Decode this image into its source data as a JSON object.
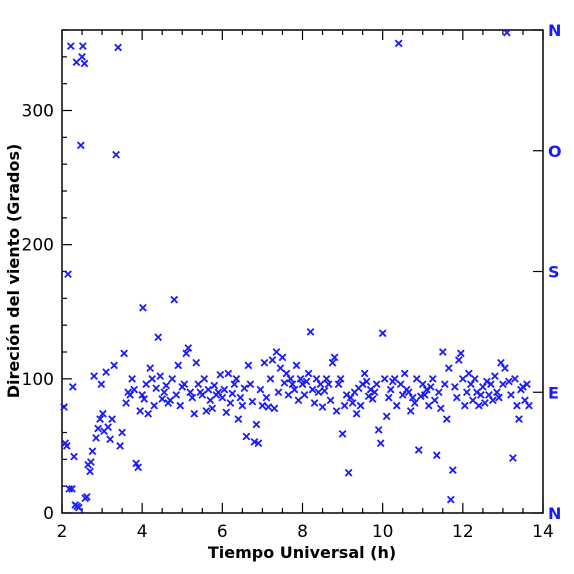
{
  "chart_data": {
    "type": "scatter",
    "xlabel": "Tiempo Universal (h)",
    "ylabel": "Direción del viento (Grados)",
    "xlim": [
      2,
      14
    ],
    "ylim": [
      0,
      360
    ],
    "xticks": [
      2,
      4,
      6,
      8,
      10,
      12,
      14
    ],
    "yticks": [
      0,
      100,
      200,
      300
    ],
    "compass_labels": [
      {
        "label": "N",
        "value": 0
      },
      {
        "label": "E",
        "value": 90
      },
      {
        "label": "S",
        "value": 180
      },
      {
        "label": "O",
        "value": 270
      },
      {
        "label": "N",
        "value": 360
      }
    ],
    "marker": "x",
    "color": "#1a1aff",
    "grid": false,
    "series": [
      {
        "points": [
          [
            2.05,
            79
          ],
          [
            2.08,
            52
          ],
          [
            2.12,
            50
          ],
          [
            2.15,
            178
          ],
          [
            2.18,
            18
          ],
          [
            2.22,
            348
          ],
          [
            2.25,
            18
          ],
          [
            2.27,
            94
          ],
          [
            2.3,
            42
          ],
          [
            2.33,
            6
          ],
          [
            2.36,
            336
          ],
          [
            2.38,
            5
          ],
          [
            2.42,
            4
          ],
          [
            2.47,
            274
          ],
          [
            2.5,
            340
          ],
          [
            2.52,
            348
          ],
          [
            2.56,
            335
          ],
          [
            2.58,
            11
          ],
          [
            2.62,
            12
          ],
          [
            2.65,
            36
          ],
          [
            2.7,
            31
          ],
          [
            2.72,
            38
          ],
          [
            2.76,
            46
          ],
          [
            2.8,
            102
          ],
          [
            2.85,
            56
          ],
          [
            2.9,
            63
          ],
          [
            2.95,
            70
          ],
          [
            2.98,
            96
          ],
          [
            3.02,
            74
          ],
          [
            3.05,
            61
          ],
          [
            3.1,
            105
          ],
          [
            3.15,
            64
          ],
          [
            3.2,
            55
          ],
          [
            3.25,
            70
          ],
          [
            3.3,
            110
          ],
          [
            3.35,
            267
          ],
          [
            3.4,
            347
          ],
          [
            3.45,
            50
          ],
          [
            3.5,
            60
          ],
          [
            3.55,
            119
          ],
          [
            3.6,
            82
          ],
          [
            3.65,
            90
          ],
          [
            3.7,
            88
          ],
          [
            3.75,
            100
          ],
          [
            3.8,
            92
          ],
          [
            3.85,
            37
          ],
          [
            3.9,
            34
          ],
          [
            3.95,
            76
          ],
          [
            4.0,
            88
          ],
          [
            4.02,
            153
          ],
          [
            4.05,
            85
          ],
          [
            4.1,
            96
          ],
          [
            4.15,
            74
          ],
          [
            4.2,
            108
          ],
          [
            4.25,
            100
          ],
          [
            4.3,
            80
          ],
          [
            4.35,
            93
          ],
          [
            4.4,
            131
          ],
          [
            4.45,
            102
          ],
          [
            4.5,
            85
          ],
          [
            4.55,
            90
          ],
          [
            4.6,
            95
          ],
          [
            4.65,
            82
          ],
          [
            4.7,
            84
          ],
          [
            4.75,
            100
          ],
          [
            4.8,
            159
          ],
          [
            4.85,
            88
          ],
          [
            4.9,
            110
          ],
          [
            4.95,
            80
          ],
          [
            5.0,
            94
          ],
          [
            5.05,
            96
          ],
          [
            5.1,
            119
          ],
          [
            5.15,
            123
          ],
          [
            5.2,
            90
          ],
          [
            5.25,
            86
          ],
          [
            5.3,
            74
          ],
          [
            5.35,
            112
          ],
          [
            5.4,
            96
          ],
          [
            5.45,
            90
          ],
          [
            5.5,
            88
          ],
          [
            5.55,
            100
          ],
          [
            5.6,
            76
          ],
          [
            5.65,
            92
          ],
          [
            5.7,
            84
          ],
          [
            5.75,
            78
          ],
          [
            5.8,
            95
          ],
          [
            5.85,
            88
          ],
          [
            5.9,
            90
          ],
          [
            5.95,
            103
          ],
          [
            6.0,
            86
          ],
          [
            6.05,
            92
          ],
          [
            6.1,
            75
          ],
          [
            6.15,
            104
          ],
          [
            6.2,
            82
          ],
          [
            6.25,
            89
          ],
          [
            6.3,
            96
          ],
          [
            6.35,
            100
          ],
          [
            6.4,
            70
          ],
          [
            6.45,
            86
          ],
          [
            6.5,
            80
          ],
          [
            6.55,
            93
          ],
          [
            6.6,
            57
          ],
          [
            6.65,
            110
          ],
          [
            6.7,
            96
          ],
          [
            6.75,
            83
          ],
          [
            6.8,
            53
          ],
          [
            6.85,
            66
          ],
          [
            6.9,
            52
          ],
          [
            6.95,
            92
          ],
          [
            7.0,
            80
          ],
          [
            7.05,
            112
          ],
          [
            7.1,
            86
          ],
          [
            7.15,
            79
          ],
          [
            7.2,
            100
          ],
          [
            7.25,
            114
          ],
          [
            7.3,
            78
          ],
          [
            7.35,
            120
          ],
          [
            7.4,
            90
          ],
          [
            7.45,
            108
          ],
          [
            7.5,
            116
          ],
          [
            7.55,
            97
          ],
          [
            7.6,
            104
          ],
          [
            7.65,
            88
          ],
          [
            7.7,
            100
          ],
          [
            7.75,
            96
          ],
          [
            7.8,
            92
          ],
          [
            7.85,
            110
          ],
          [
            7.9,
            84
          ],
          [
            7.95,
            100
          ],
          [
            8.0,
            96
          ],
          [
            8.05,
            88
          ],
          [
            8.1,
            98
          ],
          [
            8.15,
            104
          ],
          [
            8.2,
            135
          ],
          [
            8.25,
            92
          ],
          [
            8.3,
            82
          ],
          [
            8.35,
            100
          ],
          [
            8.4,
            90
          ],
          [
            8.45,
            96
          ],
          [
            8.5,
            79
          ],
          [
            8.55,
            91
          ],
          [
            8.6,
            100
          ],
          [
            8.65,
            96
          ],
          [
            8.7,
            84
          ],
          [
            8.75,
            112
          ],
          [
            8.8,
            116
          ],
          [
            8.85,
            76
          ],
          [
            8.9,
            96
          ],
          [
            8.95,
            100
          ],
          [
            9.0,
            59
          ],
          [
            9.05,
            80
          ],
          [
            9.1,
            88
          ],
          [
            9.15,
            30
          ],
          [
            9.2,
            86
          ],
          [
            9.25,
            82
          ],
          [
            9.3,
            90
          ],
          [
            9.35,
            74
          ],
          [
            9.4,
            93
          ],
          [
            9.45,
            80
          ],
          [
            9.5,
            96
          ],
          [
            9.55,
            104
          ],
          [
            9.6,
            98
          ],
          [
            9.65,
            87
          ],
          [
            9.7,
            92
          ],
          [
            9.75,
            85
          ],
          [
            9.8,
            90
          ],
          [
            9.85,
            96
          ],
          [
            9.9,
            62
          ],
          [
            9.95,
            52
          ],
          [
            10.0,
            134
          ],
          [
            10.05,
            100
          ],
          [
            10.1,
            72
          ],
          [
            10.15,
            86
          ],
          [
            10.2,
            92
          ],
          [
            10.25,
            98
          ],
          [
            10.3,
            100
          ],
          [
            10.35,
            80
          ],
          [
            10.4,
            350
          ],
          [
            10.45,
            96
          ],
          [
            10.5,
            88
          ],
          [
            10.55,
            104
          ],
          [
            10.6,
            92
          ],
          [
            10.65,
            90
          ],
          [
            10.7,
            76
          ],
          [
            10.75,
            86
          ],
          [
            10.8,
            82
          ],
          [
            10.85,
            100
          ],
          [
            10.9,
            47
          ],
          [
            10.95,
            87
          ],
          [
            11.0,
            96
          ],
          [
            11.05,
            88
          ],
          [
            11.1,
            92
          ],
          [
            11.15,
            80
          ],
          [
            11.2,
            94
          ],
          [
            11.25,
            100
          ],
          [
            11.3,
            84
          ],
          [
            11.35,
            43
          ],
          [
            11.4,
            90
          ],
          [
            11.45,
            78
          ],
          [
            11.5,
            120
          ],
          [
            11.55,
            96
          ],
          [
            11.6,
            70
          ],
          [
            11.65,
            108
          ],
          [
            11.7,
            10
          ],
          [
            11.75,
            32
          ],
          [
            11.8,
            94
          ],
          [
            11.85,
            86
          ],
          [
            11.9,
            114
          ],
          [
            11.95,
            119
          ],
          [
            12.0,
            100
          ],
          [
            12.05,
            80
          ],
          [
            12.1,
            90
          ],
          [
            12.15,
            104
          ],
          [
            12.2,
            96
          ],
          [
            12.25,
            84
          ],
          [
            12.3,
            100
          ],
          [
            12.35,
            90
          ],
          [
            12.4,
            80
          ],
          [
            12.45,
            88
          ],
          [
            12.5,
            94
          ],
          [
            12.55,
            82
          ],
          [
            12.6,
            98
          ],
          [
            12.65,
            88
          ],
          [
            12.7,
            96
          ],
          [
            12.75,
            84
          ],
          [
            12.8,
            102
          ],
          [
            12.85,
            90
          ],
          [
            12.9,
            86
          ],
          [
            12.95,
            112
          ],
          [
            13.0,
            96
          ],
          [
            13.05,
            108
          ],
          [
            13.1,
            358
          ],
          [
            13.15,
            98
          ],
          [
            13.2,
            88
          ],
          [
            13.25,
            41
          ],
          [
            13.3,
            100
          ],
          [
            13.35,
            80
          ],
          [
            13.4,
            70
          ],
          [
            13.45,
            92
          ],
          [
            13.5,
            94
          ],
          [
            13.55,
            84
          ],
          [
            13.6,
            96
          ],
          [
            13.65,
            80
          ]
        ]
      }
    ]
  }
}
